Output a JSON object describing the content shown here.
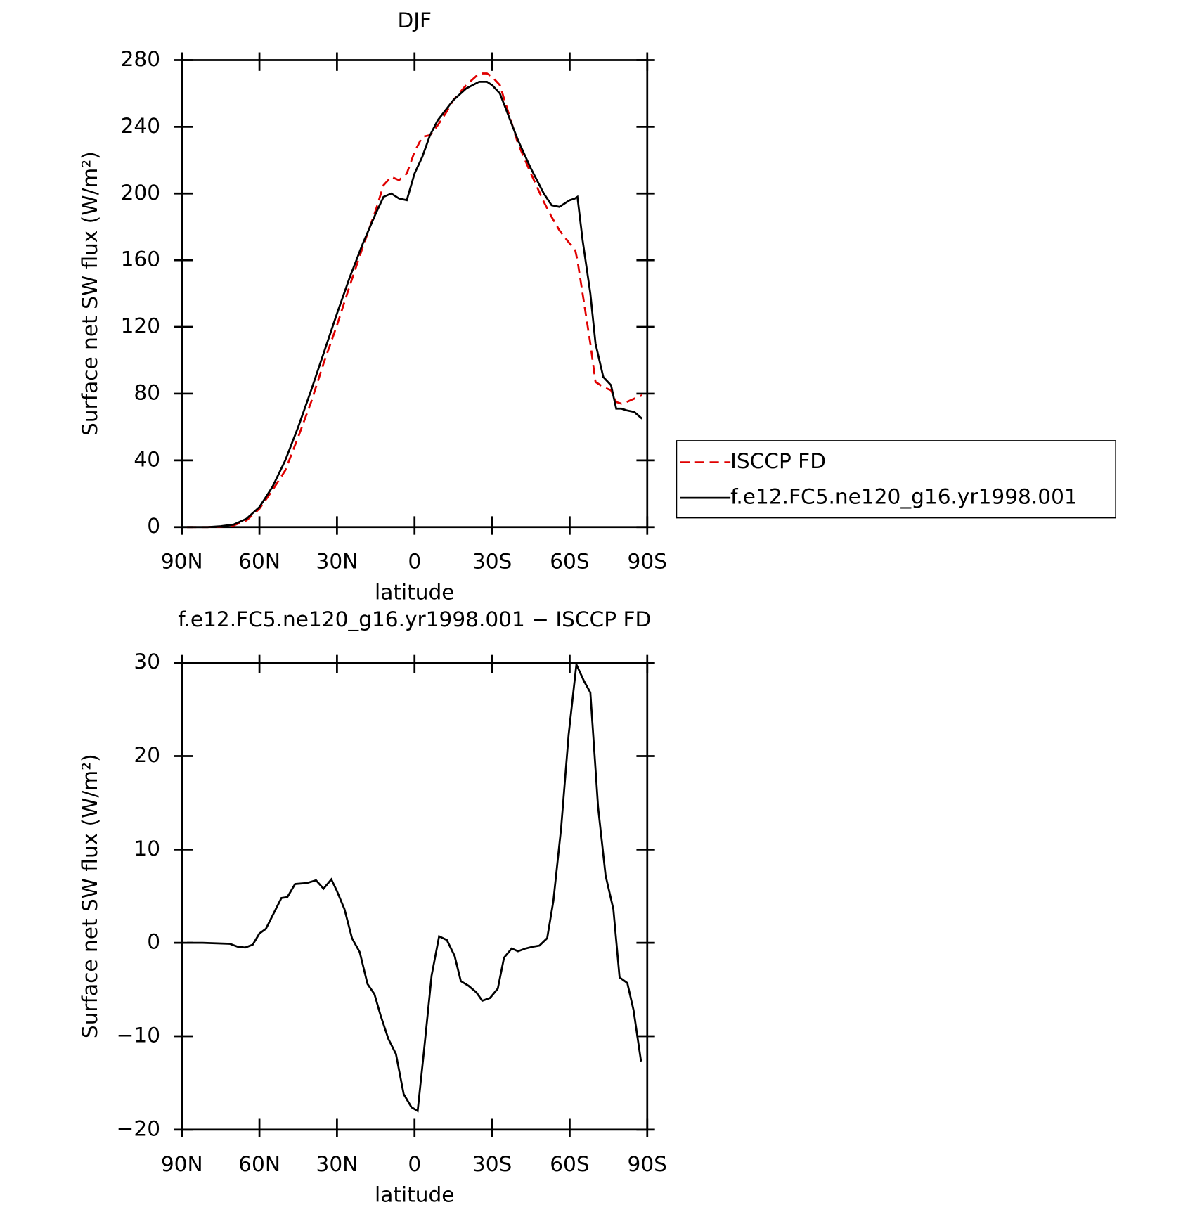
{
  "chart_data": [
    {
      "type": "line",
      "title": "DJF",
      "x_label": "latitude",
      "y_label": "Surface net SW flux (W/m²)",
      "x": [
        88,
        85,
        80,
        75,
        70,
        65,
        60,
        55,
        50,
        45,
        40,
        35,
        30,
        25,
        20,
        15,
        12,
        9,
        6,
        3,
        0,
        -3,
        -6,
        -9,
        -12,
        -15,
        -20,
        -25,
        -28,
        -30,
        -33,
        -36,
        -40,
        -45,
        -50,
        -53,
        -56,
        -60,
        -62,
        -63,
        -65,
        -68,
        -70,
        -73,
        -76,
        -78,
        -80,
        -82,
        -85,
        -88
      ],
      "series": [
        {
          "name": "ISCCP FD",
          "color": "#e00000",
          "dash": true,
          "values": [
            0,
            0,
            0,
            0.3,
            1,
            4,
            11,
            22,
            34,
            54,
            75,
            99,
            121,
            145,
            168,
            190,
            205,
            210,
            208,
            212,
            225,
            234,
            235,
            241,
            248,
            256,
            265,
            272,
            272,
            270,
            265,
            250,
            230,
            212,
            195,
            186,
            178,
            170,
            167,
            160,
            140,
            110,
            87,
            84,
            82,
            75,
            74,
            75,
            77,
            79
          ]
        },
        {
          "name": "f.e12.FC5.ne120_g16.yr1998.001",
          "color": "#000000",
          "dash": false,
          "values": [
            0,
            0,
            0,
            0.5,
            1.5,
            5,
            12,
            24,
            40,
            60,
            82,
            105,
            128,
            150,
            170,
            188,
            198,
            200,
            197,
            196,
            212,
            222,
            235,
            244,
            250,
            256,
            263,
            267,
            267,
            265,
            260,
            248,
            232,
            215,
            200,
            193,
            192,
            196,
            197,
            198,
            172,
            140,
            110,
            90,
            85,
            71,
            71,
            70,
            69,
            65
          ]
        }
      ],
      "xlim": [
        90,
        -90
      ],
      "ylim": [
        0,
        280
      ],
      "xticks": [
        {
          "value": 90,
          "label": "90N"
        },
        {
          "value": 60,
          "label": "60N"
        },
        {
          "value": 30,
          "label": "30N"
        },
        0,
        {
          "value": -30,
          "label": "30S"
        },
        {
          "value": -60,
          "label": "60S"
        },
        {
          "value": -90,
          "label": "90S"
        }
      ],
      "yticks": [
        0,
        40,
        80,
        120,
        160,
        200,
        240,
        280
      ],
      "legend": "right"
    },
    {
      "type": "line",
      "title": "f.e12.FC5.ne120_g16.yr1998.001 − ISCCP FD",
      "x_label": "latitude",
      "y_label": "Surface net SW flux (W/m²)",
      "x": [
        88,
        82,
        71.5,
        68.5,
        65.5,
        62.6,
        60,
        57.5,
        51.5,
        49.2,
        46.2,
        41.7,
        38.1,
        35.2,
        32.2,
        30.1,
        27.1,
        24.2,
        21.2,
        18.2,
        15.5,
        13.1,
        10.1,
        7.2,
        4.2,
        1.2,
        -1.2,
        -3.6,
        -6.6,
        -9.5,
        -12.5,
        -15.5,
        -17.9,
        -20.9,
        -23.9,
        -26.2,
        -29.2,
        -32.2,
        -34.6,
        -37.6,
        -40,
        -43,
        -46,
        -48.3,
        -51.3,
        -53.7,
        -56.7,
        -59.6,
        -62.6,
        -65.6,
        -68,
        -71,
        -73.9,
        -76.9,
        -79.3,
        -82.3,
        -84.7,
        -87.6
      ],
      "series": [
        {
          "color": "#000000",
          "dash": false,
          "values": [
            0,
            0,
            -0.1,
            -0.4,
            -0.5,
            -0.2,
            1,
            1.5,
            4.8,
            4.9,
            6.3,
            6.4,
            6.7,
            5.8,
            6.8,
            5.6,
            3.6,
            0.5,
            -1,
            -4.4,
            -5.5,
            -7.8,
            -10.3,
            -11.9,
            -16.2,
            -17.6,
            -18,
            -11.7,
            -3.5,
            0.7,
            0.3,
            -1.4,
            -4.1,
            -4.6,
            -5.3,
            -6.2,
            -5.9,
            -4.9,
            -1.6,
            -0.6,
            -0.9,
            -0.6,
            -0.4,
            -0.3,
            0.5,
            4.5,
            12.3,
            22.3,
            29.8,
            28,
            26.8,
            14.5,
            7.2,
            3.6,
            -3.7,
            -4.3,
            -7.2,
            -12.7
          ]
        }
      ],
      "xlim": [
        90,
        -90
      ],
      "ylim": [
        -20,
        30
      ],
      "xticks": [
        {
          "value": 90,
          "label": "90N"
        },
        {
          "value": 60,
          "label": "60N"
        },
        {
          "value": 30,
          "label": "30N"
        },
        0,
        {
          "value": -30,
          "label": "30S"
        },
        {
          "value": -60,
          "label": "60S"
        },
        {
          "value": -90,
          "label": "90S"
        }
      ],
      "yticks": [
        {
          "value": -20,
          "label": "−20"
        },
        {
          "value": -10,
          "label": "−10"
        },
        0,
        10,
        20,
        30
      ]
    }
  ]
}
